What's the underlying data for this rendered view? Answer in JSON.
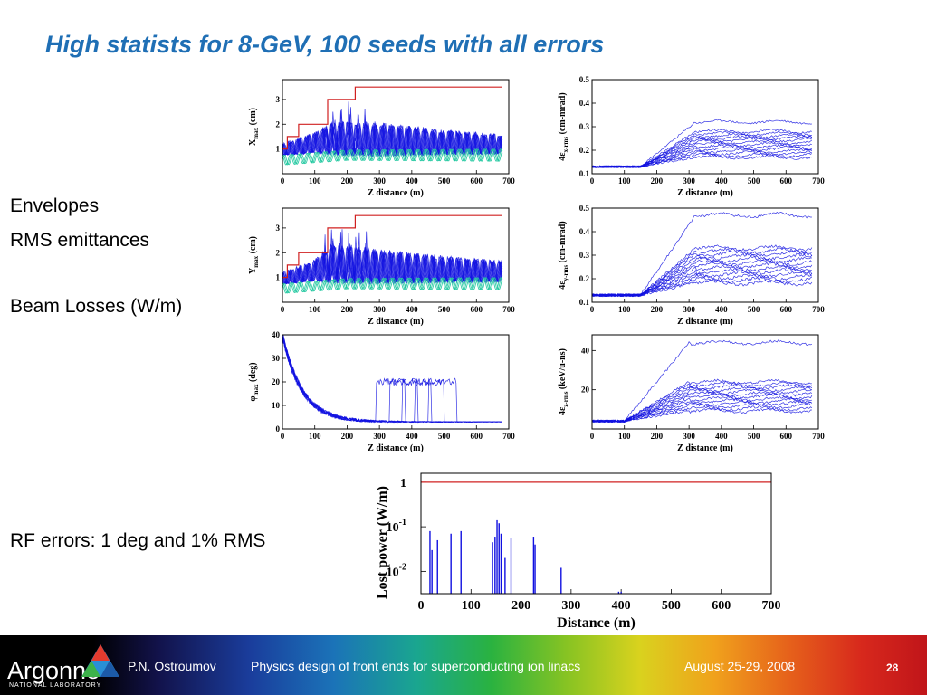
{
  "slide": {
    "title": "High statists for 8-GeV, 100 seeds with all errors",
    "labels": {
      "envelopes": "Envelopes",
      "rms_emittances": "RMS emittances",
      "beam_losses": "Beam Losses (W/m)",
      "rf_errors": "RF errors: 1 deg and 1% RMS"
    }
  },
  "footer": {
    "logo_text": "Argonne",
    "logo_subtext": "NATIONAL LABORATORY",
    "author": "P.N. Ostroumov",
    "talk_title": "Physics design of front ends for superconducting ion linacs",
    "date": "August 25-29, 2008",
    "page_number": "28"
  },
  "colors": {
    "title": "#1f6fb5",
    "envelope_lines": "#1010e0",
    "mean_lines": "#22c8a0",
    "limit_line": "#d02020"
  },
  "chart_data": [
    {
      "id": "xmax",
      "type": "line",
      "xlabel": "Z distance (m)",
      "ylabel": "Xmax (cm)",
      "ylabel_main": "X",
      "ylabel_sub": "max",
      "ylabel_unit": "(cm)",
      "xlim": [
        0,
        700
      ],
      "ylim": [
        0,
        3.8
      ],
      "xticks": [
        "0",
        "100",
        "200",
        "300",
        "400",
        "500",
        "600",
        "700"
      ],
      "yticks": [
        "1",
        "2",
        "3"
      ],
      "limit_step": {
        "x": [
          0,
          15,
          15,
          50,
          50,
          140,
          140,
          225,
          225,
          680
        ],
        "y": [
          1.0,
          1.0,
          1.5,
          1.5,
          2.0,
          2.0,
          3.0,
          3.0,
          3.5,
          3.5
        ]
      },
      "envelope": {
        "base": [
          [
            0,
            0.9
          ],
          [
            50,
            1.0
          ],
          [
            120,
            1.15
          ],
          [
            150,
            1.2
          ],
          [
            300,
            1.15
          ],
          [
            680,
            1.05
          ]
        ],
        "amp": [
          [
            0,
            0.35
          ],
          [
            100,
            0.6
          ],
          [
            160,
            0.95
          ],
          [
            300,
            0.95
          ],
          [
            500,
            0.7
          ],
          [
            680,
            0.55
          ]
        ],
        "period": 26
      },
      "mean": {
        "base": [
          [
            0,
            0.55
          ],
          [
            100,
            0.65
          ],
          [
            200,
            0.75
          ],
          [
            680,
            0.75
          ]
        ],
        "amp": [
          [
            0,
            0.2
          ],
          [
            680,
            0.25
          ]
        ],
        "period": 26
      }
    },
    {
      "id": "ex",
      "type": "line",
      "xlabel": "Z distance (m)",
      "ylabel": "4εx-rms (cm-mrad)",
      "ylabel_main": "4ε",
      "ylabel_sub": "x-rms",
      "ylabel_unit": "(cm-mrad)",
      "xlim": [
        0,
        700
      ],
      "ylim": [
        0.1,
        0.5
      ],
      "xticks": [
        "0",
        "100",
        "200",
        "300",
        "400",
        "500",
        "600",
        "700"
      ],
      "yticks": [
        "0.1",
        "0.2",
        "0.3",
        "0.4",
        "0.5"
      ],
      "bands": {
        "start": 0.13,
        "grow_start": 150,
        "grow_end": 320,
        "low_end": 0.16,
        "high_end": 0.28,
        "outlier_end": 0.32
      }
    },
    {
      "id": "ymax",
      "type": "line",
      "xlabel": "Z distance (m)",
      "ylabel": "Ymax (cm)",
      "ylabel_main": "Y",
      "ylabel_sub": "max",
      "ylabel_unit": "(cm)",
      "xlim": [
        0,
        700
      ],
      "ylim": [
        0,
        3.8
      ],
      "xticks": [
        "0",
        "100",
        "200",
        "300",
        "400",
        "500",
        "600",
        "700"
      ],
      "yticks": [
        "1",
        "2",
        "3"
      ],
      "limit_step": {
        "x": [
          0,
          15,
          15,
          50,
          50,
          140,
          140,
          225,
          225,
          680
        ],
        "y": [
          1.0,
          1.0,
          1.5,
          1.5,
          2.0,
          2.0,
          3.0,
          3.0,
          3.5,
          3.5
        ]
      },
      "envelope": {
        "base": [
          [
            0,
            0.9
          ],
          [
            50,
            1.0
          ],
          [
            120,
            1.2
          ],
          [
            150,
            1.3
          ],
          [
            300,
            1.2
          ],
          [
            680,
            1.1
          ]
        ],
        "amp": [
          [
            0,
            0.35
          ],
          [
            100,
            0.6
          ],
          [
            150,
            1.1
          ],
          [
            300,
            1.0
          ],
          [
            500,
            0.75
          ],
          [
            680,
            0.6
          ]
        ],
        "period": 26
      },
      "mean": {
        "base": [
          [
            0,
            0.55
          ],
          [
            100,
            0.65
          ],
          [
            200,
            0.75
          ],
          [
            680,
            0.75
          ]
        ],
        "amp": [
          [
            0,
            0.2
          ],
          [
            680,
            0.25
          ]
        ],
        "period": 26
      }
    },
    {
      "id": "ey",
      "type": "line",
      "xlabel": "Z distance (m)",
      "ylabel": "4εy-rms (cm-mrad)",
      "ylabel_main": "4ε",
      "ylabel_sub": "y-rms",
      "ylabel_unit": "(cm-mrad)",
      "xlim": [
        0,
        700
      ],
      "ylim": [
        0.1,
        0.5
      ],
      "xticks": [
        "0",
        "100",
        "200",
        "300",
        "400",
        "500",
        "600",
        "700"
      ],
      "yticks": [
        "0.1",
        "0.2",
        "0.3",
        "0.4",
        "0.5"
      ],
      "bands": {
        "start": 0.13,
        "grow_start": 150,
        "grow_end": 320,
        "low_end": 0.17,
        "high_end": 0.33,
        "outlier_end": 0.47
      }
    },
    {
      "id": "phimax",
      "type": "line",
      "xlabel": "Z distance (m)",
      "ylabel": "φmax (deg)",
      "ylabel_main": "φ",
      "ylabel_sub": "max",
      "ylabel_unit": "(deg)",
      "xlim": [
        0,
        700
      ],
      "ylim": [
        0,
        40
      ],
      "xticks": [
        "0",
        "100",
        "200",
        "300",
        "400",
        "500",
        "600",
        "700"
      ],
      "yticks": [
        "0",
        "10",
        "20",
        "30",
        "40"
      ],
      "decay": {
        "start": 40,
        "tau": 60,
        "floor": 3
      }
    },
    {
      "id": "ez",
      "type": "line",
      "xlabel": "Z distance (m)",
      "ylabel": "4εz-rms (keV/u-ns)",
      "ylabel_main": "4ε",
      "ylabel_sub": "z-rms",
      "ylabel_unit": "(keV/u-ns)",
      "xlim": [
        0,
        700
      ],
      "ylim": [
        0,
        48
      ],
      "xticks": [
        "0",
        "100",
        "200",
        "300",
        "400",
        "500",
        "600",
        "700"
      ],
      "yticks": [
        "20",
        "40"
      ],
      "bands": {
        "start": 4,
        "grow_start": 100,
        "grow_end": 300,
        "low_end": 8,
        "high_end": 24,
        "outlier_end": 44
      }
    },
    {
      "id": "losses",
      "type": "bar",
      "xlabel": "Distance (m)",
      "ylabel": "Lost power (W/m)",
      "xlim": [
        0,
        700
      ],
      "log_scale": true,
      "xticks": [
        "0",
        "100",
        "200",
        "300",
        "400",
        "500",
        "600",
        "700"
      ],
      "yticks": [
        {
          "base": "1",
          "exp": ""
        },
        {
          "base": "10",
          "exp": "-1"
        },
        {
          "base": "10",
          "exp": "-2"
        }
      ],
      "ylim_log10": [
        -2.5,
        0.2
      ],
      "limit_line": 1,
      "x": [
        18,
        22,
        33,
        60,
        80,
        143,
        148,
        152,
        156,
        160,
        168,
        180,
        225,
        228,
        280,
        395,
        400
      ],
      "values": [
        0.08,
        0.03,
        0.05,
        0.07,
        0.08,
        0.045,
        0.06,
        0.14,
        0.12,
        0.07,
        0.02,
        0.055,
        0.06,
        0.04,
        0.012,
        0.0035,
        0.0035
      ]
    }
  ]
}
